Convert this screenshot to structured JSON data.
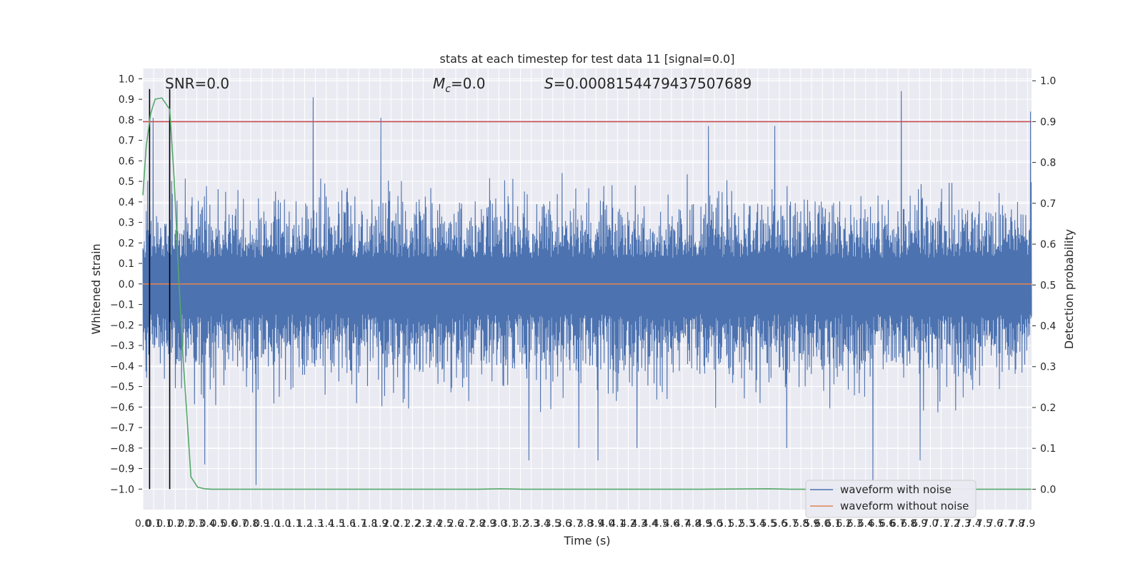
{
  "chart_data": {
    "type": "line",
    "title": "stats at each timestep for test data 11 [signal=0.0]",
    "xlabel": "Time (s)",
    "ylabel_left": "Whitened strain",
    "ylabel_right": "Detection probability",
    "xlim": [
      0.0,
      7.95
    ],
    "ylim_left": [
      -1.1,
      1.05
    ],
    "ylim_right": [
      -0.05,
      1.03
    ],
    "grid": true,
    "legend_position": "lower right",
    "x_tick_labels": [
      "0.0",
      "0.1",
      "0.1",
      "0.2",
      "0.2",
      "0.3",
      "0.4",
      "0.5",
      "0.6",
      "0.7",
      "0.8",
      "0.9",
      "1.0",
      "1.0",
      "1.1",
      "1.2",
      "1.3",
      "1.4",
      "1.5",
      "1.6",
      "1.7",
      "1.8",
      "1.9",
      "2.0",
      "2.1",
      "2.2",
      "2.3",
      "2.4",
      "2.5",
      "2.6",
      "2.7",
      "2.8",
      "2.9",
      "3.0",
      "3.1",
      "3.2",
      "3.3",
      "3.4",
      "3.5",
      "3.6",
      "3.7",
      "3.8",
      "3.9",
      "4.0",
      "4.1",
      "4.2",
      "4.3",
      "4.4",
      "4.5",
      "4.6",
      "4.7",
      "4.8",
      "4.9",
      "5.0",
      "5.1",
      "5.2",
      "5.3",
      "5.4",
      "5.5",
      "5.6",
      "5.7",
      "5.8",
      "5.9",
      "6.0",
      "6.1",
      "6.2",
      "6.3",
      "6.4",
      "6.5",
      "6.6",
      "6.7",
      "6.8",
      "6.9",
      "7.0",
      "7.1",
      "7.2",
      "7.3",
      "7.4",
      "7.5",
      "7.6",
      "7.7",
      "7.8",
      "7.9"
    ],
    "y_tick_labels_left": [
      "1.0",
      "0.9",
      "0.8",
      "0.7",
      "0.6",
      "0.5",
      "0.4",
      "0.3",
      "0.2",
      "0.1",
      "0.0",
      "−0.1",
      "−0.2",
      "−0.3",
      "−0.4",
      "−0.5",
      "−0.6",
      "−0.7",
      "−0.8",
      "−0.9",
      "−1.0"
    ],
    "y_tick_labels_right": [
      "1.0",
      "0.9",
      "0.8",
      "0.7",
      "0.6",
      "0.5",
      "0.4",
      "0.3",
      "0.2",
      "0.1",
      "0.0"
    ],
    "annotations": [
      {
        "text": "SNR=0.0"
      },
      {
        "text": "M_c=0.0",
        "base": "M",
        "sub": "c",
        "rest": "=0.0"
      },
      {
        "text": "S=0.0008154479437507689",
        "italic": "S",
        "rest": "=0.0008154479437507689"
      }
    ],
    "vertical_lines_x": [
      0.06,
      0.24
    ],
    "threshold": {
      "axis": "right",
      "value": 0.9,
      "color": "#c44e52"
    },
    "series": [
      {
        "name": "waveform with noise",
        "axis": "left",
        "color": "#4c72b0",
        "kind": "noise",
        "envelope_typical": [
          -0.42,
          0.36
        ],
        "peaks": [
          {
            "x": 0.09,
            "y": 0.81
          },
          {
            "x": 0.24,
            "y": 0.79
          },
          {
            "x": 1.52,
            "y": 0.91
          },
          {
            "x": 2.13,
            "y": 0.81
          },
          {
            "x": 5.06,
            "y": 0.77
          },
          {
            "x": 5.65,
            "y": 0.77
          },
          {
            "x": 6.78,
            "y": 0.94
          },
          {
            "x": 7.94,
            "y": 0.84
          }
        ],
        "troughs": [
          {
            "x": 1.01,
            "y": -0.98
          },
          {
            "x": 0.55,
            "y": -0.88
          },
          {
            "x": 3.45,
            "y": -0.86
          },
          {
            "x": 4.07,
            "y": -0.86
          },
          {
            "x": 6.53,
            "y": -0.96
          },
          {
            "x": 6.95,
            "y": -0.86
          },
          {
            "x": 4.42,
            "y": -0.8
          },
          {
            "x": 3.9,
            "y": -0.8
          },
          {
            "x": 5.76,
            "y": -0.8
          }
        ]
      },
      {
        "name": "waveform without noise",
        "axis": "left",
        "color": "#dd8452",
        "x": [
          0.0,
          7.95
        ],
        "y": [
          0.0,
          0.0
        ]
      },
      {
        "name": "",
        "axis": "right",
        "color": "#55a868",
        "x": [
          0.0,
          0.03,
          0.07,
          0.11,
          0.17,
          0.24,
          0.28,
          0.32,
          0.36,
          0.43,
          0.49,
          0.55,
          0.62,
          0.75,
          1.0,
          2.0,
          3.0,
          3.2,
          3.4,
          4.0,
          5.0,
          5.6,
          5.8,
          6.5,
          7.0,
          7.95
        ],
        "y": [
          0.72,
          0.84,
          0.92,
          0.955,
          0.958,
          0.93,
          0.76,
          0.52,
          0.32,
          0.03,
          0.005,
          0.001,
          0.0,
          0.0,
          0.0,
          0.0,
          0.0,
          0.001,
          0.0,
          0.0,
          0.0,
          0.001,
          0.0,
          0.0,
          0.0,
          0.0
        ]
      }
    ]
  }
}
